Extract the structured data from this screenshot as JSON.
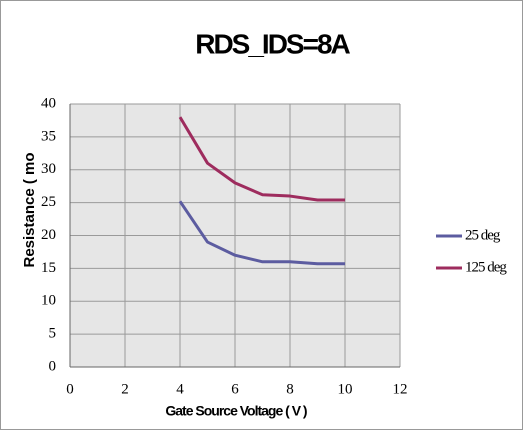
{
  "chart_data": {
    "type": "line",
    "title": "RDS_IDS=8A",
    "x_label": "Gate Source Voltage ( V )",
    "y_label": "Resistance ( mo",
    "x": [
      4,
      5,
      6,
      7,
      8,
      9,
      10
    ],
    "series": [
      {
        "name": "25 deg",
        "color": "#5c5ca0",
        "values": [
          25.2,
          19,
          17,
          16,
          16,
          15.7,
          15.7
        ]
      },
      {
        "name": "125 deg",
        "color": "#9e2c5e",
        "values": [
          38,
          31,
          28,
          26.2,
          26,
          25.4,
          25.4
        ]
      }
    ],
    "xlim": [
      0,
      12
    ],
    "xticks": [
      0,
      2,
      4,
      6,
      8,
      10,
      12
    ],
    "ylim": [
      0,
      40
    ],
    "yticks": [
      0,
      5,
      10,
      15,
      20,
      25,
      30,
      35,
      40
    ],
    "grid": true,
    "legend": "right"
  }
}
